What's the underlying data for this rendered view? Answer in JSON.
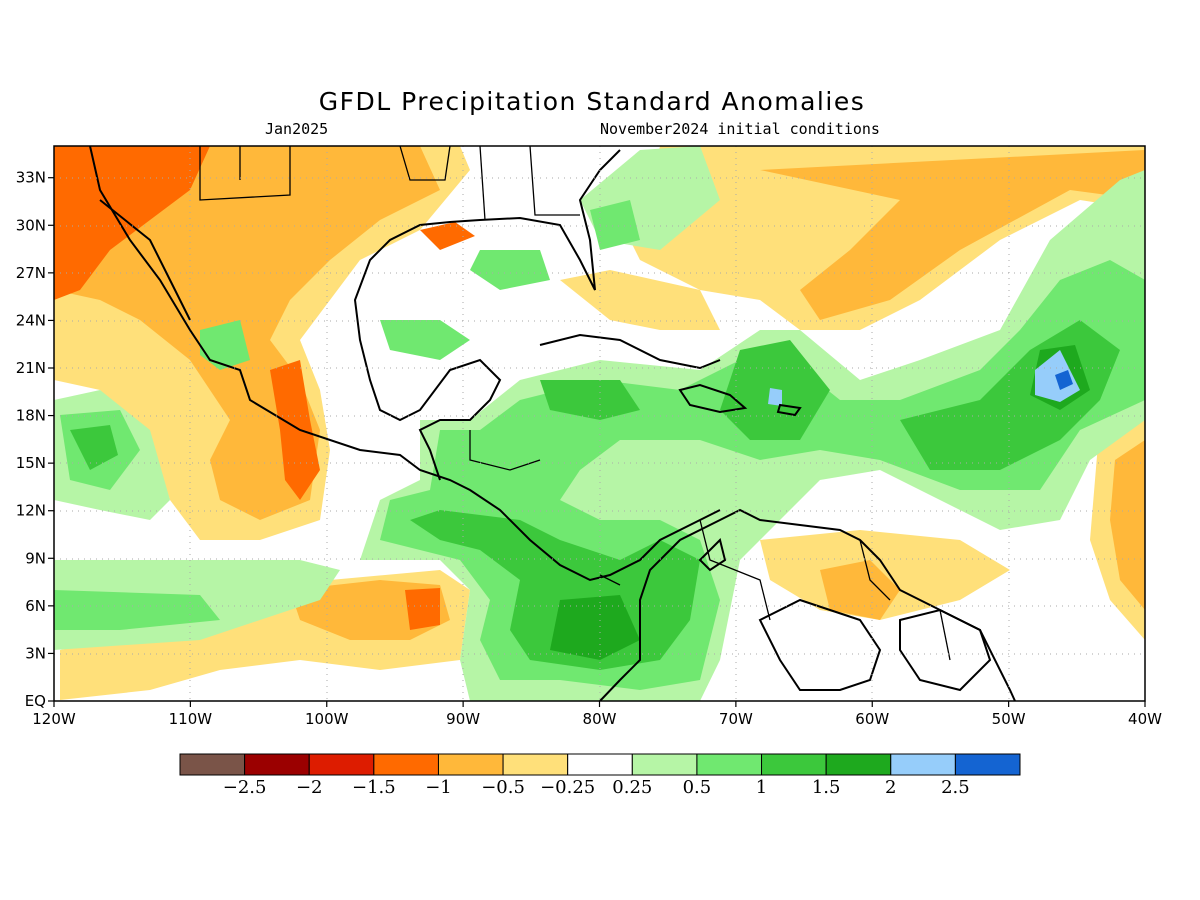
{
  "title": "GFDL Precipitation Standard Anomalies",
  "valid_month": "Jan2025",
  "init_conditions": "November2024 initial conditions",
  "map": {
    "lon_range": [
      -120,
      -40
    ],
    "lat_range": [
      0,
      35
    ],
    "x_ticks": [
      "120W",
      "110W",
      "100W",
      "90W",
      "80W",
      "70W",
      "60W",
      "50W",
      "40W"
    ],
    "y_ticks": [
      "EQ",
      "3N",
      "6N",
      "9N",
      "12N",
      "15N",
      "18N",
      "21N",
      "24N",
      "27N",
      "30N",
      "33N"
    ]
  },
  "colorbar": {
    "colors": [
      "#7a5448",
      "#9b0000",
      "#dd1c00",
      "#ff6a00",
      "#ffb83a",
      "#ffe07a",
      "#ffffff",
      "#b6f5a6",
      "#70e870",
      "#3cc83c",
      "#1ea91e",
      "#96cdfa",
      "#1464d2"
    ],
    "labels": [
      "−2.5",
      "−2",
      "−1.5",
      "−1",
      "−0.5",
      "−0.25",
      "0.25",
      "0.5",
      "1",
      "1.5",
      "2",
      "2.5"
    ]
  }
}
